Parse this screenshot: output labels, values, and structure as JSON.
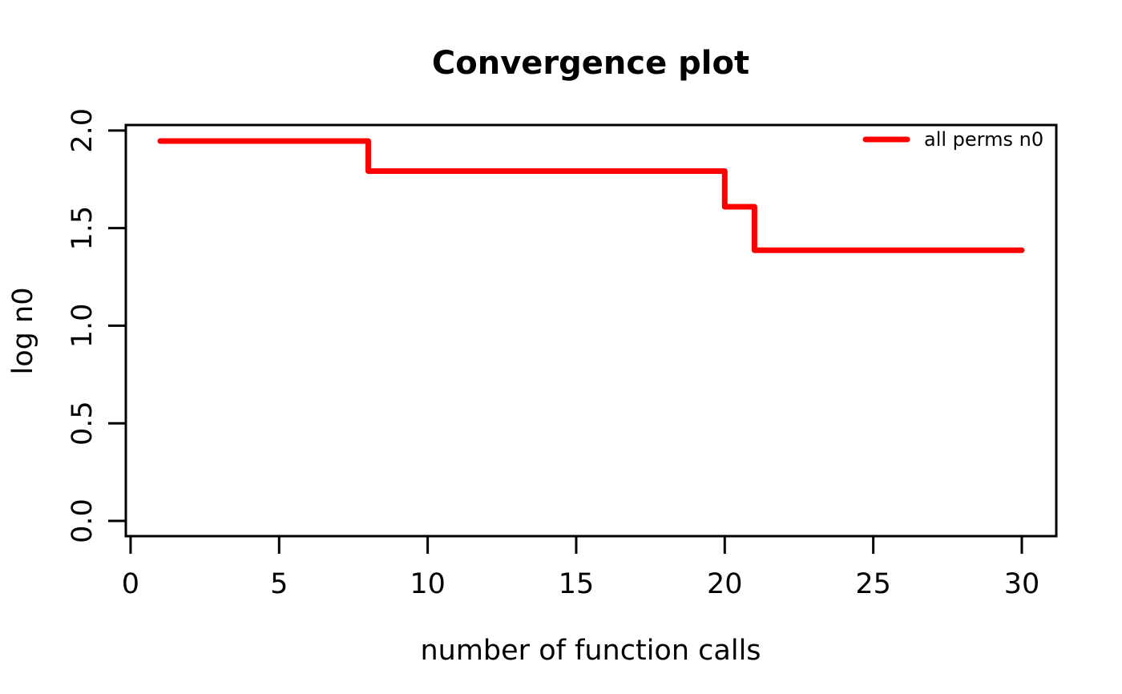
{
  "colors": {
    "series": "#FF0000",
    "axis": "#000000",
    "text": "#000000",
    "background": "#FFFFFF"
  },
  "chart_data": {
    "type": "line",
    "style": "step-post",
    "title": "Convergence plot",
    "xlabel": "number of function calls",
    "ylabel": "log n0",
    "x_ticks": [
      0,
      5,
      10,
      15,
      20,
      25,
      30
    ],
    "x_tick_labels": [
      "0",
      "5",
      "10",
      "15",
      "20",
      "25",
      "30"
    ],
    "y_ticks": [
      0.0,
      0.5,
      1.0,
      1.5,
      2.0
    ],
    "y_tick_labels": [
      "0.0",
      "0.5",
      "1.0",
      "1.5",
      "2.0"
    ],
    "xlim": [
      -0.16,
      31.16
    ],
    "ylim": [
      -0.078,
      2.028
    ],
    "grid": false,
    "legend_position": "topright",
    "series": [
      {
        "name": "all perms n0",
        "color": "#FF0000",
        "line_width": 7,
        "x": [
          1,
          8,
          20,
          21,
          30
        ],
        "y": [
          1.9459,
          1.7918,
          1.6094,
          1.3863,
          1.3863
        ]
      }
    ]
  }
}
